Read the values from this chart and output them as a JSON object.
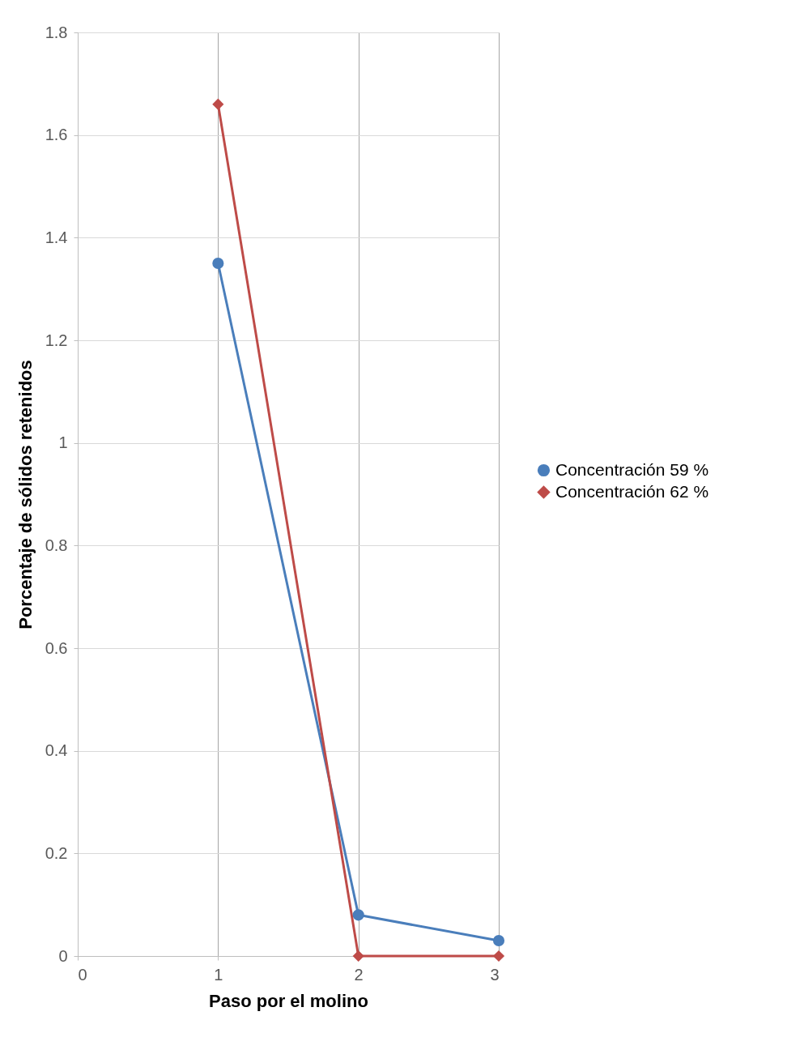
{
  "chart_data": {
    "type": "line",
    "xlabel": "Paso por el molino",
    "ylabel": "Porcentaje de sólidos retenidos",
    "x": [
      1,
      2,
      3
    ],
    "series": [
      {
        "name": "Concentración 59 %",
        "color": "#4a7ebb",
        "marker": "circle",
        "values": [
          1.35,
          0.08,
          0.03
        ]
      },
      {
        "name": "Concentración 62 %",
        "color": "#be4b48",
        "marker": "diamond",
        "values": [
          1.66,
          0,
          0
        ]
      }
    ],
    "xlim": [
      0,
      3
    ],
    "xticks": [
      0,
      1,
      2,
      3
    ],
    "ylim": [
      0,
      1.8
    ],
    "yticks": [
      0,
      0.2,
      0.4,
      0.6,
      0.8,
      1,
      1.2,
      1.4,
      1.6,
      1.8
    ],
    "grid": true,
    "legend": "right",
    "line_style": "solid"
  }
}
